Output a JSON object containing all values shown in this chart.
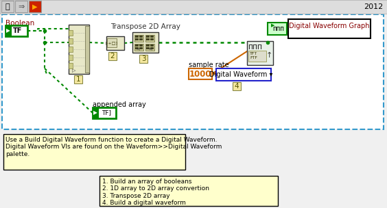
{
  "bg_color": "#f0f0f0",
  "dashed_border_color": "#3399cc",
  "title_2012": "2012",
  "boolean_label": "Boolean",
  "tf_box_color": "#008800",
  "appended_array_label": "appended array",
  "transpose_label": "Transpose 2D Array",
  "sample_rate_label": "sample rate",
  "sample_rate_value": "1000",
  "digital_waveform_label": "Digital Waveform",
  "digital_waveform_graph_label": "Digital Waveform Graph",
  "note_text": "Use a Build Digital Waveform function to create a Digital Waveform.\nDigital Waveform VIs are found on the Waveform>>Digital Waveform\npalette.",
  "steps_text": "1. Build an array of booleans\n2. 1D array to 2D array convertion\n3. Transpose 2D array\n4. Build a digital waveform",
  "wire_green": "#008800",
  "wire_orange": "#cc6600",
  "note_bg": "#ffffcc",
  "steps_bg": "#ffffcc",
  "label_nums": [
    "1",
    "2",
    "3",
    "4"
  ],
  "figw": 5.64,
  "figh": 3.04,
  "dpi": 100
}
